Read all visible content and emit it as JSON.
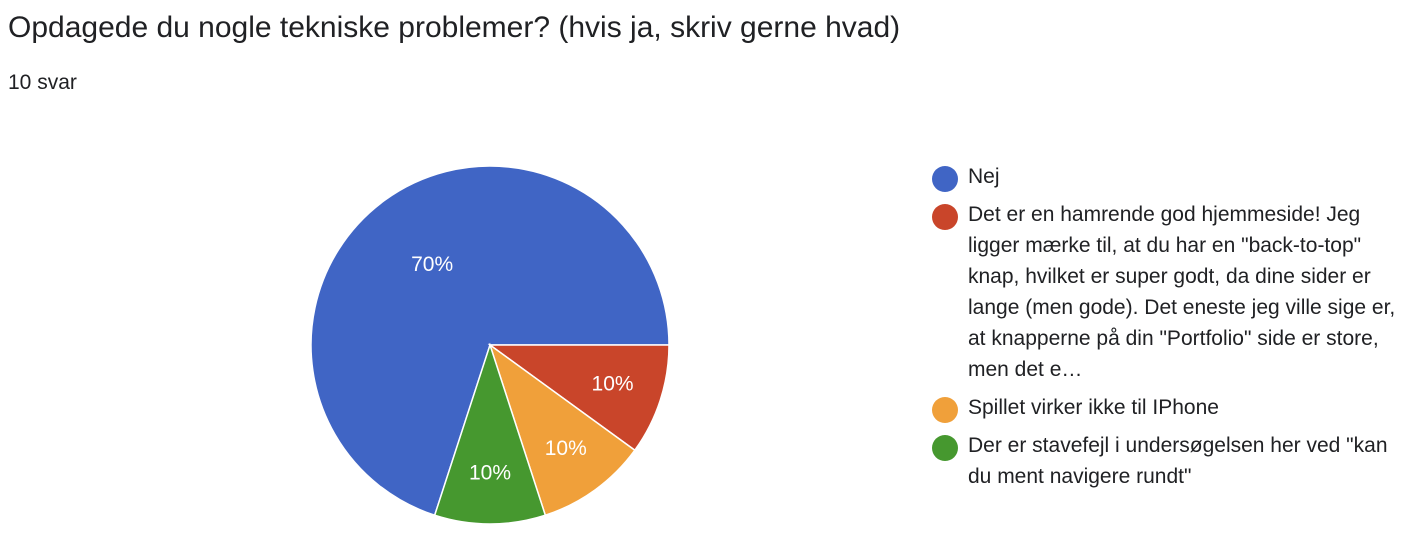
{
  "header": {
    "question": "Opdagede du nogle tekniske problemer? (hvis ja, skriv gerne hvad)",
    "response_count": "10 svar"
  },
  "chart_data": {
    "type": "pie",
    "title": "Opdagede du nogle tekniske problemer? (hvis ja, skriv gerne hvad)",
    "legend_position": "right",
    "slices": [
      {
        "name": "Nej",
        "value": 70,
        "label": "70%",
        "color": "#4065c5"
      },
      {
        "name": "Det er en hamrende god hjemmeside! Jeg ligger mærke til, at du har en \"back-to-top\" knap, hvilket er super godt, da dine sider er lange (men gode). Det eneste jeg ville sige er, at knapperne på din \"Portfolio\" side er store, men det e…",
        "value": 10,
        "label": "10%",
        "color": "#c9452a"
      },
      {
        "name": "Spillet virker ikke til IPhone",
        "value": 10,
        "label": "10%",
        "color": "#f0a03a"
      },
      {
        "name": "Der er stavefejl i undersøgelsen her ved \"kan du ment navigere rundt\"",
        "value": 10,
        "label": "10%",
        "color": "#46982f"
      }
    ]
  }
}
